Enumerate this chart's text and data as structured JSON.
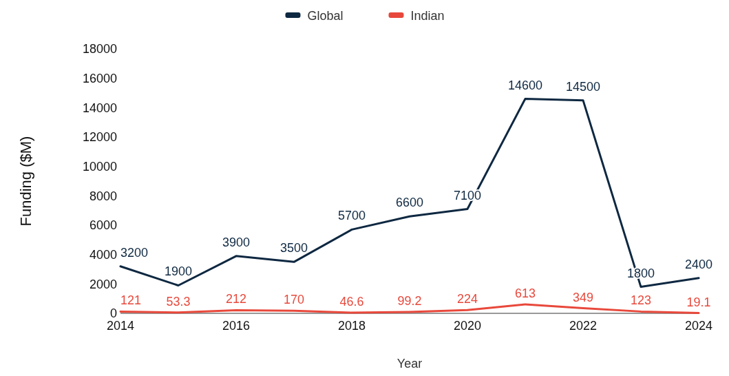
{
  "chart_data": {
    "type": "line",
    "xlabel": "Year",
    "ylabel": "Funding ($M)",
    "x": [
      2014,
      2015,
      2016,
      2017,
      2018,
      2019,
      2020,
      2021,
      2022,
      2023,
      2024
    ],
    "series": [
      {
        "name": "Global",
        "color": "#0e2841",
        "values": [
          3200,
          1900,
          3900,
          3500,
          5700,
          6600,
          7100,
          14600,
          14500,
          1800,
          2400
        ]
      },
      {
        "name": "Indian",
        "color": "#e8483b",
        "values": [
          121,
          53.3,
          212,
          170,
          46.6,
          99.2,
          224,
          613,
          349,
          123,
          19.1
        ]
      }
    ],
    "xlim": [
      2014,
      2024
    ],
    "xticks": [
      2014,
      2016,
      2018,
      2020,
      2022,
      2024
    ],
    "ylim": [
      0,
      18000
    ],
    "yticks": [
      0,
      2000,
      4000,
      6000,
      8000,
      10000,
      12000,
      14000,
      16000,
      18000
    ],
    "data_labels": true,
    "legend": "top",
    "grid": false,
    "marker": "none",
    "line_style": "solid"
  }
}
